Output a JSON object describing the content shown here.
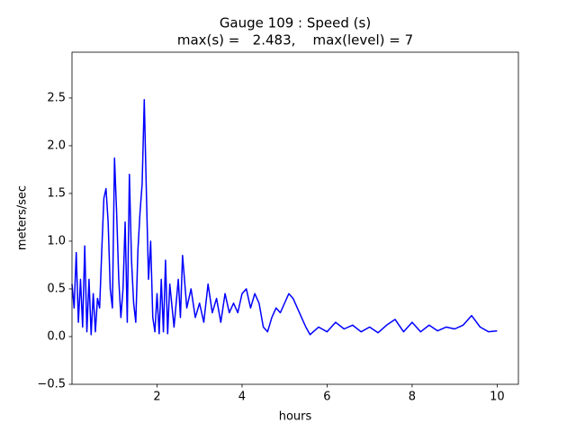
{
  "chart_data": {
    "type": "line",
    "title": "Gauge 109 : Speed (s)",
    "subtitle": "max(s) =   2.483,    max(level) = 7",
    "xlabel": "hours",
    "ylabel": "meters/sec",
    "color": "#0000ff",
    "x": [
      0.0,
      0.05,
      0.1,
      0.15,
      0.2,
      0.25,
      0.3,
      0.35,
      0.4,
      0.45,
      0.5,
      0.55,
      0.6,
      0.65,
      0.7,
      0.75,
      0.8,
      0.85,
      0.9,
      0.95,
      1.0,
      1.05,
      1.1,
      1.15,
      1.2,
      1.25,
      1.3,
      1.35,
      1.4,
      1.45,
      1.5,
      1.55,
      1.6,
      1.65,
      1.7,
      1.75,
      1.8,
      1.85,
      1.9,
      1.95,
      2.0,
      2.05,
      2.1,
      2.15,
      2.2,
      2.25,
      2.3,
      2.4,
      2.5,
      2.55,
      2.6,
      2.7,
      2.8,
      2.9,
      3.0,
      3.1,
      3.2,
      3.3,
      3.4,
      3.5,
      3.6,
      3.7,
      3.8,
      3.9,
      4.0,
      4.1,
      4.2,
      4.3,
      4.4,
      4.5,
      4.6,
      4.7,
      4.8,
      4.9,
      5.0,
      5.1,
      5.2,
      5.3,
      5.4,
      5.5,
      5.6,
      5.8,
      6.0,
      6.2,
      6.4,
      6.6,
      6.8,
      7.0,
      7.2,
      7.4,
      7.6,
      7.8,
      8.0,
      8.2,
      8.4,
      8.6,
      8.8,
      9.0,
      9.2,
      9.4,
      9.6,
      9.8,
      10.0
    ],
    "values": [
      0.55,
      0.3,
      0.88,
      0.15,
      0.6,
      0.1,
      0.95,
      0.05,
      0.6,
      0.02,
      0.45,
      0.05,
      0.4,
      0.3,
      0.9,
      1.45,
      1.55,
      1.2,
      0.5,
      0.3,
      1.87,
      1.3,
      0.6,
      0.2,
      0.5,
      1.2,
      0.15,
      1.7,
      0.8,
      0.35,
      0.15,
      0.9,
      1.3,
      1.6,
      2.483,
      1.5,
      0.6,
      1.0,
      0.2,
      0.05,
      0.45,
      0.03,
      0.6,
      0.05,
      0.8,
      0.03,
      0.55,
      0.1,
      0.6,
      0.2,
      0.85,
      0.3,
      0.5,
      0.2,
      0.35,
      0.15,
      0.55,
      0.25,
      0.4,
      0.15,
      0.45,
      0.25,
      0.35,
      0.25,
      0.45,
      0.5,
      0.3,
      0.45,
      0.35,
      0.1,
      0.05,
      0.2,
      0.3,
      0.25,
      0.35,
      0.45,
      0.4,
      0.3,
      0.2,
      0.1,
      0.02,
      0.1,
      0.05,
      0.15,
      0.08,
      0.12,
      0.05,
      0.1,
      0.04,
      0.12,
      0.18,
      0.05,
      0.15,
      0.05,
      0.12,
      0.06,
      0.1,
      0.08,
      0.12,
      0.22,
      0.1,
      0.05,
      0.06
    ],
    "xlim": [
      0,
      10.5
    ],
    "xticks": [
      2,
      4,
      6,
      8,
      10
    ],
    "ylim": [
      -0.5,
      2.98
    ],
    "yticks": [
      {
        "value": -0.5,
        "label": "−0.5"
      },
      {
        "value": 0,
        "label": "0.0"
      },
      0.5,
      {
        "value": 1,
        "label": "1.0"
      },
      1.5,
      {
        "value": 2,
        "label": "2.0"
      },
      2.5
    ],
    "grid": false
  }
}
